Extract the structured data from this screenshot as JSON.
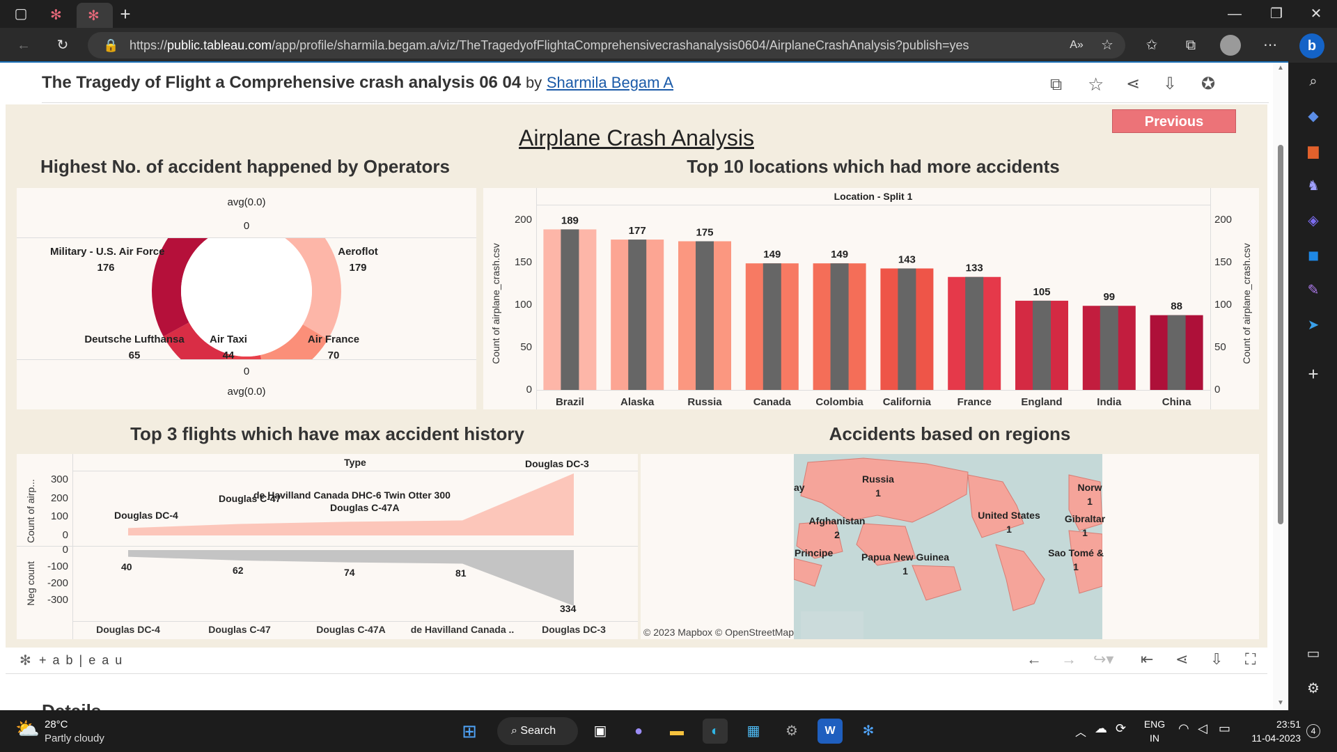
{
  "browser": {
    "url_prefix": "https://",
    "url_host": "public.tableau.com",
    "url_path": "/app/profile/sharmila.begam.a/viz/TheTragedyofFlightaComprehensivecrashanalysis0604/AirplaneCrashAnalysis?publish=yes"
  },
  "viz_header": {
    "title": "The Tragedy of Flight a Comprehensive crash analysis 06 04",
    "by": "by",
    "author": "Sharmila Begam A"
  },
  "dashboard": {
    "title": "Airplane Crash Analysis",
    "previous_button": "Previous"
  },
  "donut": {
    "title": "Highest No. of accident happened by Operators",
    "top_label": "avg(0.0)",
    "top_value": "0",
    "bottom_value": "0",
    "bottom_label": "avg(0.0)",
    "segments": [
      {
        "name": "Military - U.S. Air Force",
        "value": "176",
        "color": "#b5103a"
      },
      {
        "name": "Aeroflot",
        "value": "179",
        "color": "#fdb6a8"
      },
      {
        "name": "Deutsche Lufthansa",
        "value": "65",
        "color": "#d92d45"
      },
      {
        "name": "Air Taxi",
        "value": "44",
        "color": "#e8404b"
      },
      {
        "name": "Air France",
        "value": "70",
        "color": "#fb8f79"
      }
    ]
  },
  "chart_data": [
    {
      "type": "bar",
      "title": "Top 10 locations which had more accidents",
      "header": "Location - Split 1",
      "ylabel": "Count of airplane_crash.csv",
      "ylim": [
        0,
        200
      ],
      "yticks": [
        "0",
        "50",
        "100",
        "150",
        "200"
      ],
      "categories": [
        "Brazil",
        "Alaska",
        "Russia",
        "Canada",
        "Colombia",
        "California",
        "France",
        "England",
        "India",
        "China"
      ],
      "values": [
        189,
        177,
        175,
        149,
        149,
        143,
        133,
        105,
        99,
        88
      ],
      "colors": [
        "#fdb6a8",
        "#fca593",
        "#fb9780",
        "#f77a63",
        "#f46e58",
        "#ee5548",
        "#e5394a",
        "#d42a43",
        "#c21d3e",
        "#ae1039"
      ],
      "overlay_color": "#666666"
    },
    {
      "type": "area",
      "title": "Top 3 flights which have max accident history",
      "header": "Type",
      "ylabel_top": "Count of airp...",
      "ylabel_bottom": "Neg count",
      "yticks_top": [
        "300",
        "200",
        "100",
        "0"
      ],
      "yticks_bottom": [
        "0",
        "-100",
        "-200",
        "-300"
      ],
      "categories": [
        "Douglas DC-4",
        "Douglas C-47",
        "Douglas C-47A",
        "de Havilland Canada ..",
        "Douglas DC-3"
      ],
      "series": [
        {
          "name": "Count",
          "values": [
            40,
            62,
            74,
            81,
            334
          ],
          "color": "#fcc6ba"
        },
        {
          "name": "Neg count",
          "values": [
            -40,
            -62,
            -74,
            -81,
            -334
          ],
          "color": "#c4c4c4"
        }
      ],
      "labels_top": [
        "Douglas DC-4",
        "Douglas C-47",
        "Douglas C-47A",
        "de Havilland Canada DHC-6 Twin Otter 300",
        "Douglas DC-3"
      ],
      "labels_bottom": [
        "40",
        "62",
        "74",
        "81",
        "334"
      ]
    }
  ],
  "map": {
    "title": "Accidents based on regions",
    "credit": "© 2023 Mapbox  © OpenStreetMap",
    "labels": [
      {
        "name": "Russia",
        "value": "1"
      },
      {
        "name": "Afghanistan",
        "value": "2"
      },
      {
        "name": "United States",
        "value": "1"
      },
      {
        "name": "Gibraltar",
        "value": "1"
      },
      {
        "name": "Principe",
        "value": ""
      },
      {
        "name": "Papua New Guinea",
        "value": "1"
      },
      {
        "name": "Sao Tomé &",
        "value": "1"
      },
      {
        "name": "Norw",
        "value": "1"
      },
      {
        "name": "ay",
        "value": ""
      }
    ]
  },
  "tableau_footer": {
    "brand": "+ a b | e a u"
  },
  "below_fold": "Details",
  "taskbar": {
    "weather_temp": "28°C",
    "weather_desc": "Partly cloudy",
    "search": "Search",
    "lang": "ENG",
    "region": "IN",
    "time": "23:51",
    "date": "11-04-2023",
    "badge": "4"
  }
}
